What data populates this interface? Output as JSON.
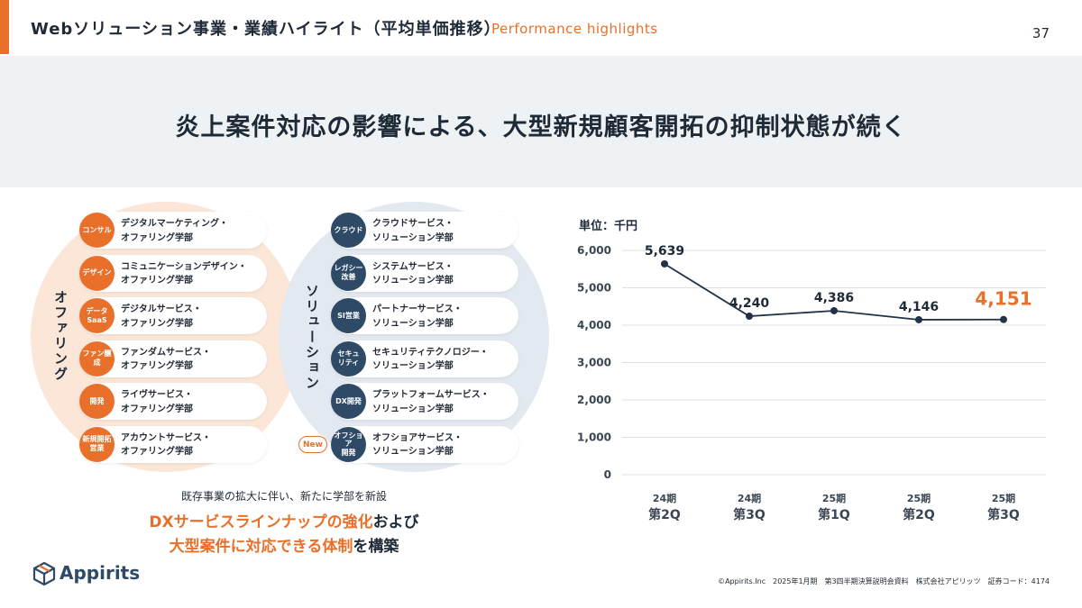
{
  "header": {
    "title": "Webソリューション事業・業績ハイライト（平均単価推移）",
    "subtitle": "Performance highlights",
    "page_number": "37"
  },
  "banner": {
    "headline": "炎上案件対応の影響による、大型新規顧客開拓の抑制状態が続く"
  },
  "offering": {
    "label": "オファリング",
    "items": [
      {
        "badge": "コンサル",
        "text": "デジタルマーケティング・\nオファリング学部"
      },
      {
        "badge": "デザイン",
        "text": "コミュニケーションデザイン・\nオファリング学部"
      },
      {
        "badge": "データ\nSaaS",
        "text": "デジタルサービス・\nオファリング学部"
      },
      {
        "badge": "ファン醸成",
        "text": "ファンダムサービス・\nオファリング学部"
      },
      {
        "badge": "開発",
        "text": "ライヴサービス・\nオファリング学部"
      },
      {
        "badge": "新規開拓\n営業",
        "text": "アカウントサービス・\nオファリング学部"
      }
    ]
  },
  "solution": {
    "label": "ソリューション",
    "new_label": "New",
    "items": [
      {
        "badge": "クラウド",
        "text": "クラウドサービス・\nソリューション学部"
      },
      {
        "badge": "レガシー\n改善",
        "text": "システムサービス・\nソリューション学部"
      },
      {
        "badge": "SI営業",
        "text": "パートナーサービス・\nソリューション学部"
      },
      {
        "badge": "セキュ\nリティ",
        "text": "セキュリティテクノロジー・\nソリューション学部"
      },
      {
        "badge": "DX開発",
        "text": "プラットフォームサービス・\nソリューション学部"
      },
      {
        "badge": "オフショア\n開発",
        "text": "オフショアサービス・\nソリューション学部"
      }
    ]
  },
  "caption": {
    "line1": "既存事業の拡大に伴い、新たに学部を新設",
    "line2_orange": "DXサービスラインナップの強化",
    "line2_dark": "および",
    "line3_orange": "大型案件に対応できる体制",
    "line3_dark": "を構築"
  },
  "logo": {
    "text": "Appirits"
  },
  "footer": {
    "text": "©Appirits.Inc　2025年1月期　第3四半期決算説明会資料　株式会社アピリッツ　証券コード：4174"
  },
  "colors": {
    "accent": "#e8702a",
    "navy": "#2f4a66",
    "line": "#1f3247"
  },
  "chart_data": {
    "type": "line",
    "unit_label": "単位：千円",
    "categories": [
      {
        "year": "24期",
        "quarter": "第2Q"
      },
      {
        "year": "24期",
        "quarter": "第3Q"
      },
      {
        "year": "25期",
        "quarter": "第1Q"
      },
      {
        "year": "25期",
        "quarter": "第2Q"
      },
      {
        "year": "25期",
        "quarter": "第3Q"
      }
    ],
    "values": [
      5639,
      4240,
      4386,
      4146,
      4151
    ],
    "data_labels": [
      "5,639",
      "4,240",
      "4,386",
      "4,146",
      "4,151"
    ],
    "highlight_index": 4,
    "ylim": [
      0,
      6000
    ],
    "yticks": [
      0,
      1000,
      2000,
      3000,
      4000,
      5000,
      6000
    ],
    "ytick_labels": [
      "0",
      "1,000",
      "2,000",
      "3,000",
      "4,000",
      "5,000",
      "6,000"
    ],
    "grid": true
  }
}
